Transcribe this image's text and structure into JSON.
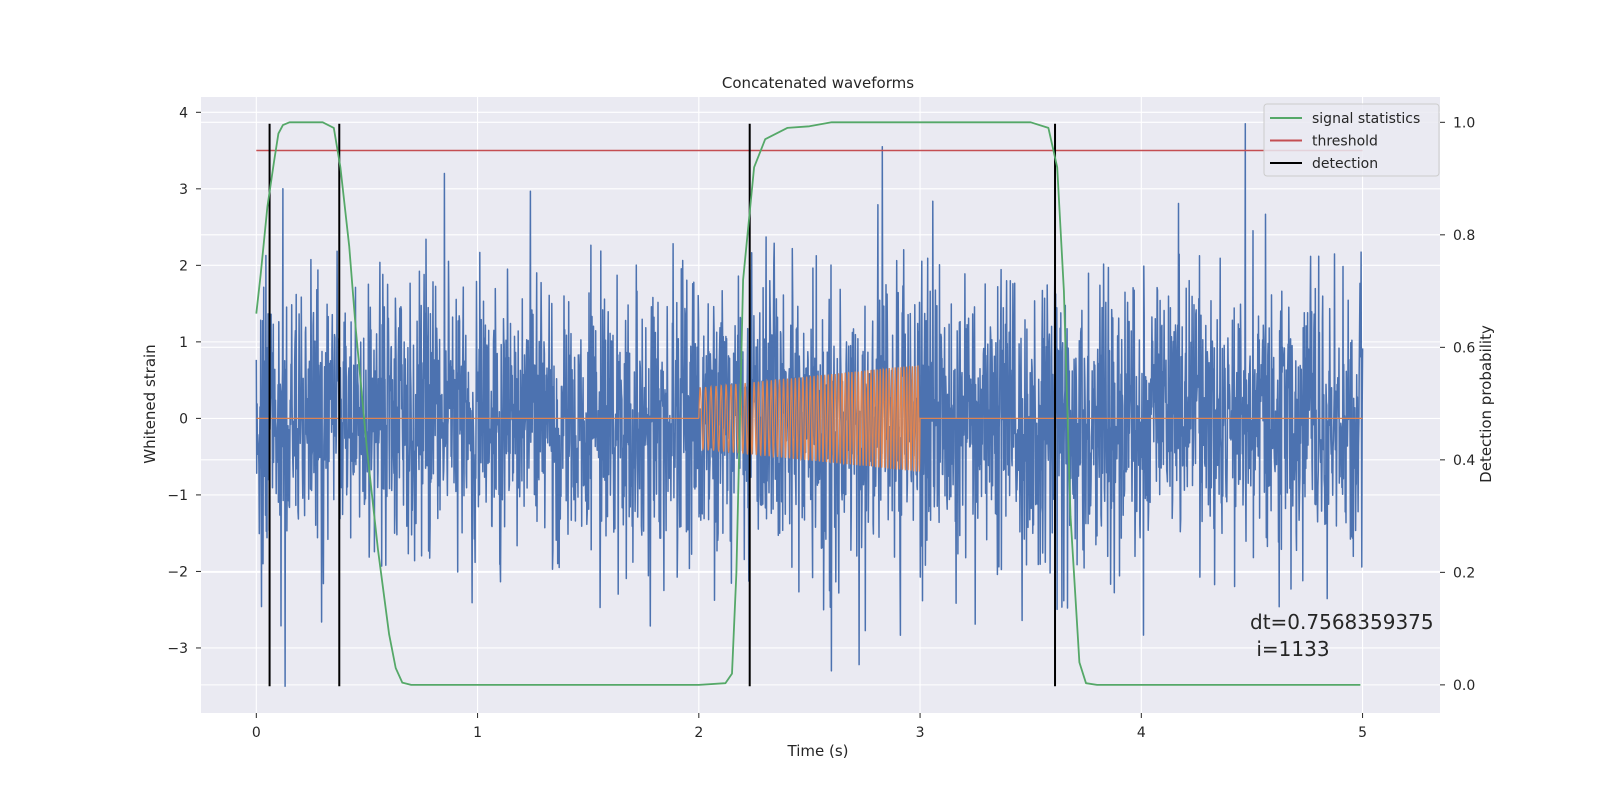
{
  "chart_data": {
    "type": "line",
    "title": "Concatenated waveforms",
    "xlabel": "Time (s)",
    "ylabel_left": "Whitened strain",
    "ylabel_right": "Detection probability",
    "xlim": [
      -0.25,
      5.35
    ],
    "ylim_left": [
      -3.85,
      4.2
    ],
    "ylim_right": [
      -0.05,
      1.045
    ],
    "xticks": [
      0,
      1,
      2,
      3,
      4,
      5
    ],
    "xtick_labels": [
      "0",
      "1",
      "2",
      "3",
      "4",
      "5"
    ],
    "yticks_left": [
      -3,
      -2,
      -1,
      0,
      1,
      2,
      3,
      4
    ],
    "ytick_labels_left": [
      "−3",
      "−2",
      "−1",
      "0",
      "1",
      "2",
      "3",
      "4"
    ],
    "yticks_right": [
      0.0,
      0.2,
      0.4,
      0.6,
      0.8,
      1.0
    ],
    "ytick_labels_right": [
      "0.0",
      "0.2",
      "0.4",
      "0.6",
      "0.8",
      "1.0"
    ],
    "grid": true,
    "legend_position": "top-right",
    "colors": {
      "background": "#eaeaf2",
      "grid": "#ffffff",
      "strain": "#4c72b0",
      "injection": "#dd8452",
      "signal_statistics": "#55a868",
      "threshold": "#c44e52",
      "detection": "#000000"
    },
    "series": [
      {
        "name": "strain",
        "axis": "left",
        "description": "whitened noise, roughly unit variance, peaks up to about ±3.5",
        "x_range": [
          0,
          5
        ],
        "std": 0.9,
        "peaks": [
          [
            0.13,
            -3.5
          ],
          [
            0.12,
            3.0
          ],
          [
            2.83,
            3.55
          ],
          [
            4.47,
            3.85
          ],
          [
            2.6,
            -3.3
          ],
          [
            0.85,
            3.2
          ]
        ]
      },
      {
        "name": "injection",
        "axis": "left",
        "description": "chirp signal between 2 s and 3 s, amplitude 0.4 to 0.7, zero elsewhere",
        "x_range": [
          0,
          5
        ],
        "chirp_start": 2.0,
        "chirp_end": 3.0,
        "amp_start": 0.4,
        "amp_end": 0.7
      },
      {
        "name": "signal statistics",
        "axis": "right",
        "x": [
          0.0,
          0.02,
          0.05,
          0.08,
          0.1,
          0.12,
          0.15,
          0.2,
          0.25,
          0.3,
          0.35,
          0.38,
          0.42,
          0.45,
          0.5,
          0.55,
          0.6,
          0.63,
          0.66,
          0.7,
          1.0,
          1.5,
          2.0,
          2.12,
          2.15,
          2.17,
          2.2,
          2.25,
          2.3,
          2.4,
          2.5,
          2.6,
          2.8,
          3.0,
          3.2,
          3.4,
          3.5,
          3.58,
          3.62,
          3.65,
          3.68,
          3.72,
          3.75,
          3.8,
          4.0,
          4.5,
          4.99
        ],
        "y": [
          0.66,
          0.73,
          0.85,
          0.93,
          0.98,
          0.995,
          1.0,
          1.0,
          1.0,
          1.0,
          0.99,
          0.92,
          0.78,
          0.63,
          0.42,
          0.24,
          0.09,
          0.03,
          0.004,
          0.0,
          0.0,
          0.0,
          0.0,
          0.003,
          0.02,
          0.2,
          0.72,
          0.92,
          0.97,
          0.99,
          0.993,
          1.0,
          1.0,
          1.0,
          1.0,
          1.0,
          1.0,
          0.99,
          0.92,
          0.7,
          0.3,
          0.04,
          0.003,
          0.0,
          0.0,
          0.0,
          0.0
        ]
      },
      {
        "name": "threshold",
        "axis": "right",
        "x": [
          0,
          5
        ],
        "y": [
          0.95,
          0.95
        ]
      },
      {
        "name": "detection",
        "axis": "left",
        "x": [
          0.06,
          0.375,
          2.23,
          3.61
        ],
        "y_range": [
          -3.5,
          3.85
        ]
      }
    ],
    "legend": [
      "signal statistics",
      "threshold",
      "detection"
    ],
    "annotation": {
      "line1": "dt=0.7568359375",
      "line2": " i=1133"
    }
  }
}
